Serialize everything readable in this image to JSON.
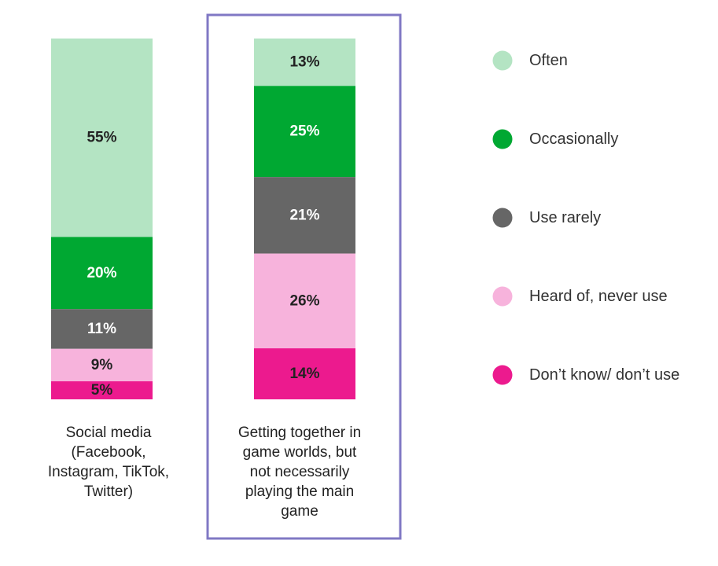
{
  "chart_data": {
    "type": "bar",
    "stacked": true,
    "percent_stacked": true,
    "categories": [
      [
        "Social media",
        "(Facebook,",
        "Instagram, TikTok,",
        "Twitter)"
      ],
      [
        "Getting together in",
        "game worlds, but",
        "not necessarily",
        "playing the main",
        "game"
      ]
    ],
    "highlighted_category": 1,
    "series": [
      {
        "name": "Often",
        "color": "#b4e4c3",
        "label_color": "#222222",
        "values": [
          55,
          13
        ]
      },
      {
        "name": "Occasionally",
        "color": "#00a832",
        "label_color": "#ffffff",
        "values": [
          20,
          25
        ]
      },
      {
        "name": "Use rarely",
        "color": "#666666",
        "label_color": "#ffffff",
        "values": [
          11,
          21
        ]
      },
      {
        "name": "Heard of, never use",
        "color": "#f7b3dc",
        "label_color": "#222222",
        "values": [
          9,
          26
        ]
      },
      {
        "name": "Don’t know/ don’t use",
        "color": "#ec1a8e",
        "label_color": "#222222",
        "values": [
          5,
          14
        ]
      }
    ],
    "data_labels": [
      [
        "55%",
        "13%"
      ],
      [
        "20%",
        "25%"
      ],
      [
        "11%",
        "21%"
      ],
      [
        "9%",
        "26%"
      ],
      [
        "5%",
        "14%"
      ]
    ],
    "legend_position": "right",
    "grid": false,
    "title": "",
    "xlabel": "",
    "ylabel": "",
    "colors": {
      "highlight_border": "#8078c4"
    }
  }
}
